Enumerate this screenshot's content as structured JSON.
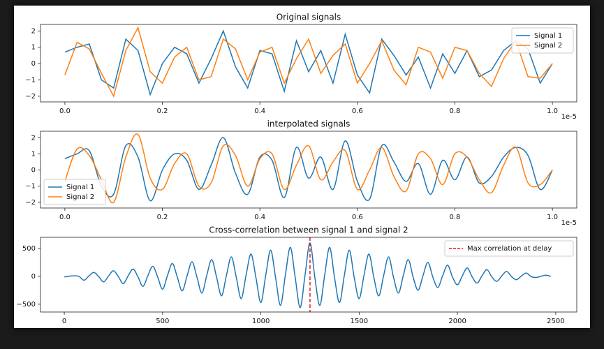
{
  "chart_data": [
    {
      "type": "line",
      "title": "Original signals",
      "smooth": false,
      "legend": "upper right",
      "x": [
        0,
        0.025,
        0.05,
        0.075,
        0.1,
        0.125,
        0.15,
        0.175,
        0.2,
        0.225,
        0.25,
        0.275,
        0.3,
        0.325,
        0.35,
        0.375,
        0.4,
        0.425,
        0.45,
        0.475,
        0.5,
        0.525,
        0.55,
        0.575,
        0.6,
        0.625,
        0.65,
        0.675,
        0.7,
        0.725,
        0.75,
        0.775,
        0.8,
        0.825,
        0.85,
        0.875,
        0.9,
        0.925,
        0.95,
        0.975,
        1
      ],
      "x_offset_label": "1e-5",
      "series": [
        {
          "name": "Signal 1",
          "color": "#1f77b4",
          "values": [
            0.7,
            1.0,
            1.2,
            -1.0,
            -1.5,
            1.5,
            0.8,
            -1.9,
            0.0,
            1.0,
            0.6,
            -1.2,
            0.3,
            2.0,
            -0.2,
            -1.5,
            0.8,
            0.6,
            -1.7,
            1.4,
            -0.5,
            0.8,
            -1.2,
            1.8,
            -0.7,
            -1.8,
            1.5,
            0.5,
            -0.7,
            0.4,
            -1.5,
            0.6,
            -0.6,
            0.8,
            -0.8,
            -0.4,
            0.8,
            1.4,
            0.9,
            -1.2,
            0.0
          ]
        },
        {
          "name": "Signal 2",
          "color": "#ff7f0e",
          "values": [
            -0.7,
            1.3,
            0.9,
            -0.6,
            -2.0,
            0.8,
            2.2,
            -0.5,
            -1.2,
            0.4,
            1.0,
            -1.0,
            -0.8,
            1.5,
            0.9,
            -1.0,
            0.7,
            1.0,
            -1.2,
            0.3,
            1.5,
            -0.6,
            0.5,
            1.2,
            -1.2,
            0.0,
            1.4,
            -0.4,
            -1.3,
            1.0,
            0.7,
            -0.9,
            1.0,
            0.8,
            -0.6,
            -1.4,
            0.3,
            1.4,
            -0.8,
            -0.9,
            0.0
          ]
        }
      ],
      "xlim": [
        -0.05,
        1.05
      ],
      "xticks": [
        {
          "value": 0,
          "label": "0.0"
        },
        {
          "value": 0.2,
          "label": "0.2"
        },
        {
          "value": 0.4,
          "label": "0.4"
        },
        {
          "value": 0.6,
          "label": "0.6"
        },
        {
          "value": 0.8,
          "label": "0.8"
        },
        {
          "value": 1,
          "label": "1.0"
        }
      ],
      "ylim": [
        -2.35,
        2.4
      ],
      "yticks": [
        {
          "value": -2,
          "label": "−2"
        },
        {
          "value": -1,
          "label": "−1"
        },
        0,
        1,
        2
      ]
    },
    {
      "type": "line",
      "title": "interpolated signals",
      "smooth": true,
      "legend": "lower left",
      "x": [
        0,
        0.025,
        0.05,
        0.075,
        0.1,
        0.125,
        0.15,
        0.175,
        0.2,
        0.225,
        0.25,
        0.275,
        0.3,
        0.325,
        0.35,
        0.375,
        0.4,
        0.425,
        0.45,
        0.475,
        0.5,
        0.525,
        0.55,
        0.575,
        0.6,
        0.625,
        0.65,
        0.675,
        0.7,
        0.725,
        0.75,
        0.775,
        0.8,
        0.825,
        0.85,
        0.875,
        0.9,
        0.925,
        0.95,
        0.975,
        1
      ],
      "x_offset_label": "1e-5",
      "series": [
        {
          "name": "Signal 1",
          "color": "#1f77b4",
          "values": [
            0.7,
            1.0,
            1.2,
            -1.0,
            -1.5,
            1.5,
            0.8,
            -1.9,
            0.0,
            1.0,
            0.6,
            -1.2,
            0.3,
            2.0,
            -0.2,
            -1.5,
            0.8,
            0.6,
            -1.7,
            1.4,
            -0.5,
            0.8,
            -1.2,
            1.8,
            -0.7,
            -1.8,
            1.5,
            0.5,
            -0.7,
            0.4,
            -1.5,
            0.6,
            -0.6,
            0.8,
            -0.8,
            -0.4,
            0.8,
            1.4,
            0.9,
            -1.2,
            0.0
          ]
        },
        {
          "name": "Signal 2",
          "color": "#ff7f0e",
          "values": [
            -0.7,
            1.3,
            0.9,
            -0.6,
            -2.0,
            0.8,
            2.2,
            -0.5,
            -1.2,
            0.4,
            1.0,
            -1.0,
            -0.8,
            1.5,
            0.9,
            -1.0,
            0.7,
            1.0,
            -1.2,
            0.3,
            1.5,
            -0.6,
            0.5,
            1.2,
            -1.2,
            0.0,
            1.4,
            -0.4,
            -1.3,
            1.0,
            0.7,
            -0.9,
            1.0,
            0.8,
            -0.6,
            -1.4,
            0.3,
            1.4,
            -0.8,
            -0.9,
            0.0
          ]
        }
      ],
      "xlim": [
        -0.05,
        1.05
      ],
      "xticks": [
        {
          "value": 0,
          "label": "0.0"
        },
        {
          "value": 0.2,
          "label": "0.2"
        },
        {
          "value": 0.4,
          "label": "0.4"
        },
        {
          "value": 0.6,
          "label": "0.6"
        },
        {
          "value": 0.8,
          "label": "0.8"
        },
        {
          "value": 1,
          "label": "1.0"
        }
      ],
      "ylim": [
        -2.35,
        2.4
      ],
      "yticks": [
        {
          "value": -2,
          "label": "−2"
        },
        {
          "value": -1,
          "label": "−1"
        },
        0,
        1,
        2
      ]
    },
    {
      "type": "line",
      "title": "Cross-correlation between signal 1 and signal 2",
      "smooth": true,
      "legend": "upper right",
      "x": [
        0,
        25,
        50,
        75,
        100,
        125,
        150,
        175,
        200,
        225,
        250,
        275,
        300,
        325,
        350,
        375,
        400,
        425,
        450,
        475,
        500,
        525,
        550,
        575,
        600,
        625,
        650,
        675,
        700,
        725,
        750,
        775,
        800,
        825,
        850,
        875,
        900,
        925,
        950,
        975,
        1000,
        1025,
        1050,
        1075,
        1100,
        1125,
        1150,
        1175,
        1200,
        1225,
        1250,
        1275,
        1300,
        1325,
        1350,
        1375,
        1400,
        1425,
        1450,
        1475,
        1500,
        1525,
        1550,
        1575,
        1600,
        1625,
        1650,
        1675,
        1700,
        1725,
        1750,
        1775,
        1800,
        1825,
        1850,
        1875,
        1900,
        1925,
        1950,
        1975,
        2000,
        2025,
        2050,
        2075,
        2100,
        2125,
        2150,
        2175,
        2200,
        2225,
        2250,
        2275,
        2300,
        2325,
        2350,
        2375,
        2400,
        2425,
        2450,
        2475
      ],
      "series": [
        {
          "color": "#1f77b4",
          "values": [
            -10,
            2,
            10,
            -2,
            -70,
            5,
            70,
            -5,
            -100,
            5,
            100,
            -5,
            -130,
            10,
            130,
            -10,
            -180,
            10,
            180,
            -10,
            -230,
            15,
            230,
            -15,
            -260,
            15,
            260,
            -15,
            -300,
            20,
            300,
            -20,
            -350,
            20,
            350,
            -20,
            -400,
            25,
            400,
            -25,
            -470,
            25,
            470,
            -25,
            -520,
            30,
            520,
            -30,
            -560,
            30,
            600,
            -30,
            -520,
            30,
            520,
            -30,
            -470,
            25,
            470,
            -25,
            -400,
            25,
            400,
            -25,
            -350,
            20,
            350,
            -20,
            -300,
            20,
            300,
            -20,
            -250,
            15,
            250,
            -15,
            -200,
            15,
            200,
            -15,
            -150,
            10,
            150,
            -10,
            -120,
            10,
            120,
            -10,
            -90,
            5,
            90,
            -5,
            -60,
            5,
            60,
            -5,
            -20,
            2,
            20,
            -2
          ]
        }
      ],
      "marker_line": {
        "label": "Max correlation at delay",
        "x": 1250,
        "color": "#e41a1c"
      },
      "xlim": [
        -121,
        2607
      ],
      "xticks": [
        0,
        500,
        1000,
        1500,
        2000,
        2500
      ],
      "ylim": [
        -640,
        700
      ],
      "yticks": [
        {
          "value": -500,
          "label": "−500"
        },
        0,
        500
      ]
    }
  ]
}
